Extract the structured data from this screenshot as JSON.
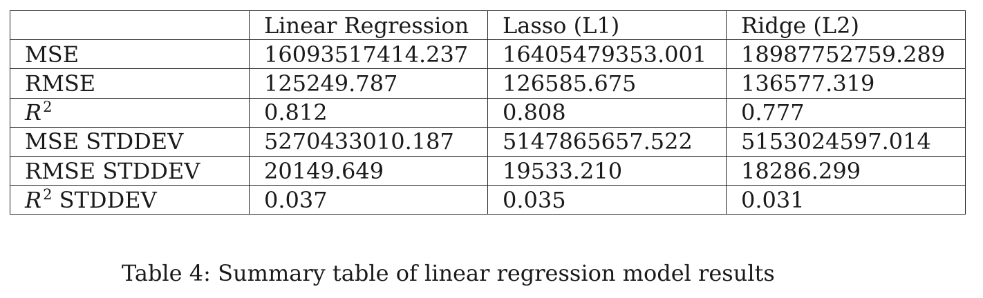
{
  "table": {
    "header": [
      "",
      "Linear Regression",
      "Lasso (L1)",
      "Ridge (L2)"
    ],
    "rows": [
      {
        "label": "MSE",
        "values": [
          "16093517414.237",
          "16405479353.001",
          "18987752759.289"
        ]
      },
      {
        "label": "RMSE",
        "values": [
          "125249.787",
          "126585.675",
          "136577.319"
        ]
      },
      {
        "label_symbol": "R",
        "label_superscript": "2",
        "label_suffix": "",
        "values": [
          "0.812",
          "0.808",
          "0.777"
        ]
      },
      {
        "label": "MSE STDDEV",
        "values": [
          "5270433010.187",
          "5147865657.522",
          "5153024597.014"
        ]
      },
      {
        "label": "RMSE STDDEV",
        "values": [
          "20149.649",
          "19533.210",
          "18286.299"
        ]
      },
      {
        "label_symbol": "R",
        "label_superscript": "2",
        "label_suffix": "STDDEV",
        "values": [
          "0.037",
          "0.035",
          "0.031"
        ]
      }
    ]
  },
  "caption": "Table 4: Summary table of linear regression model results",
  "colors": {
    "text": "#1a1a1a",
    "border": "#222222",
    "background": "#ffffff"
  }
}
